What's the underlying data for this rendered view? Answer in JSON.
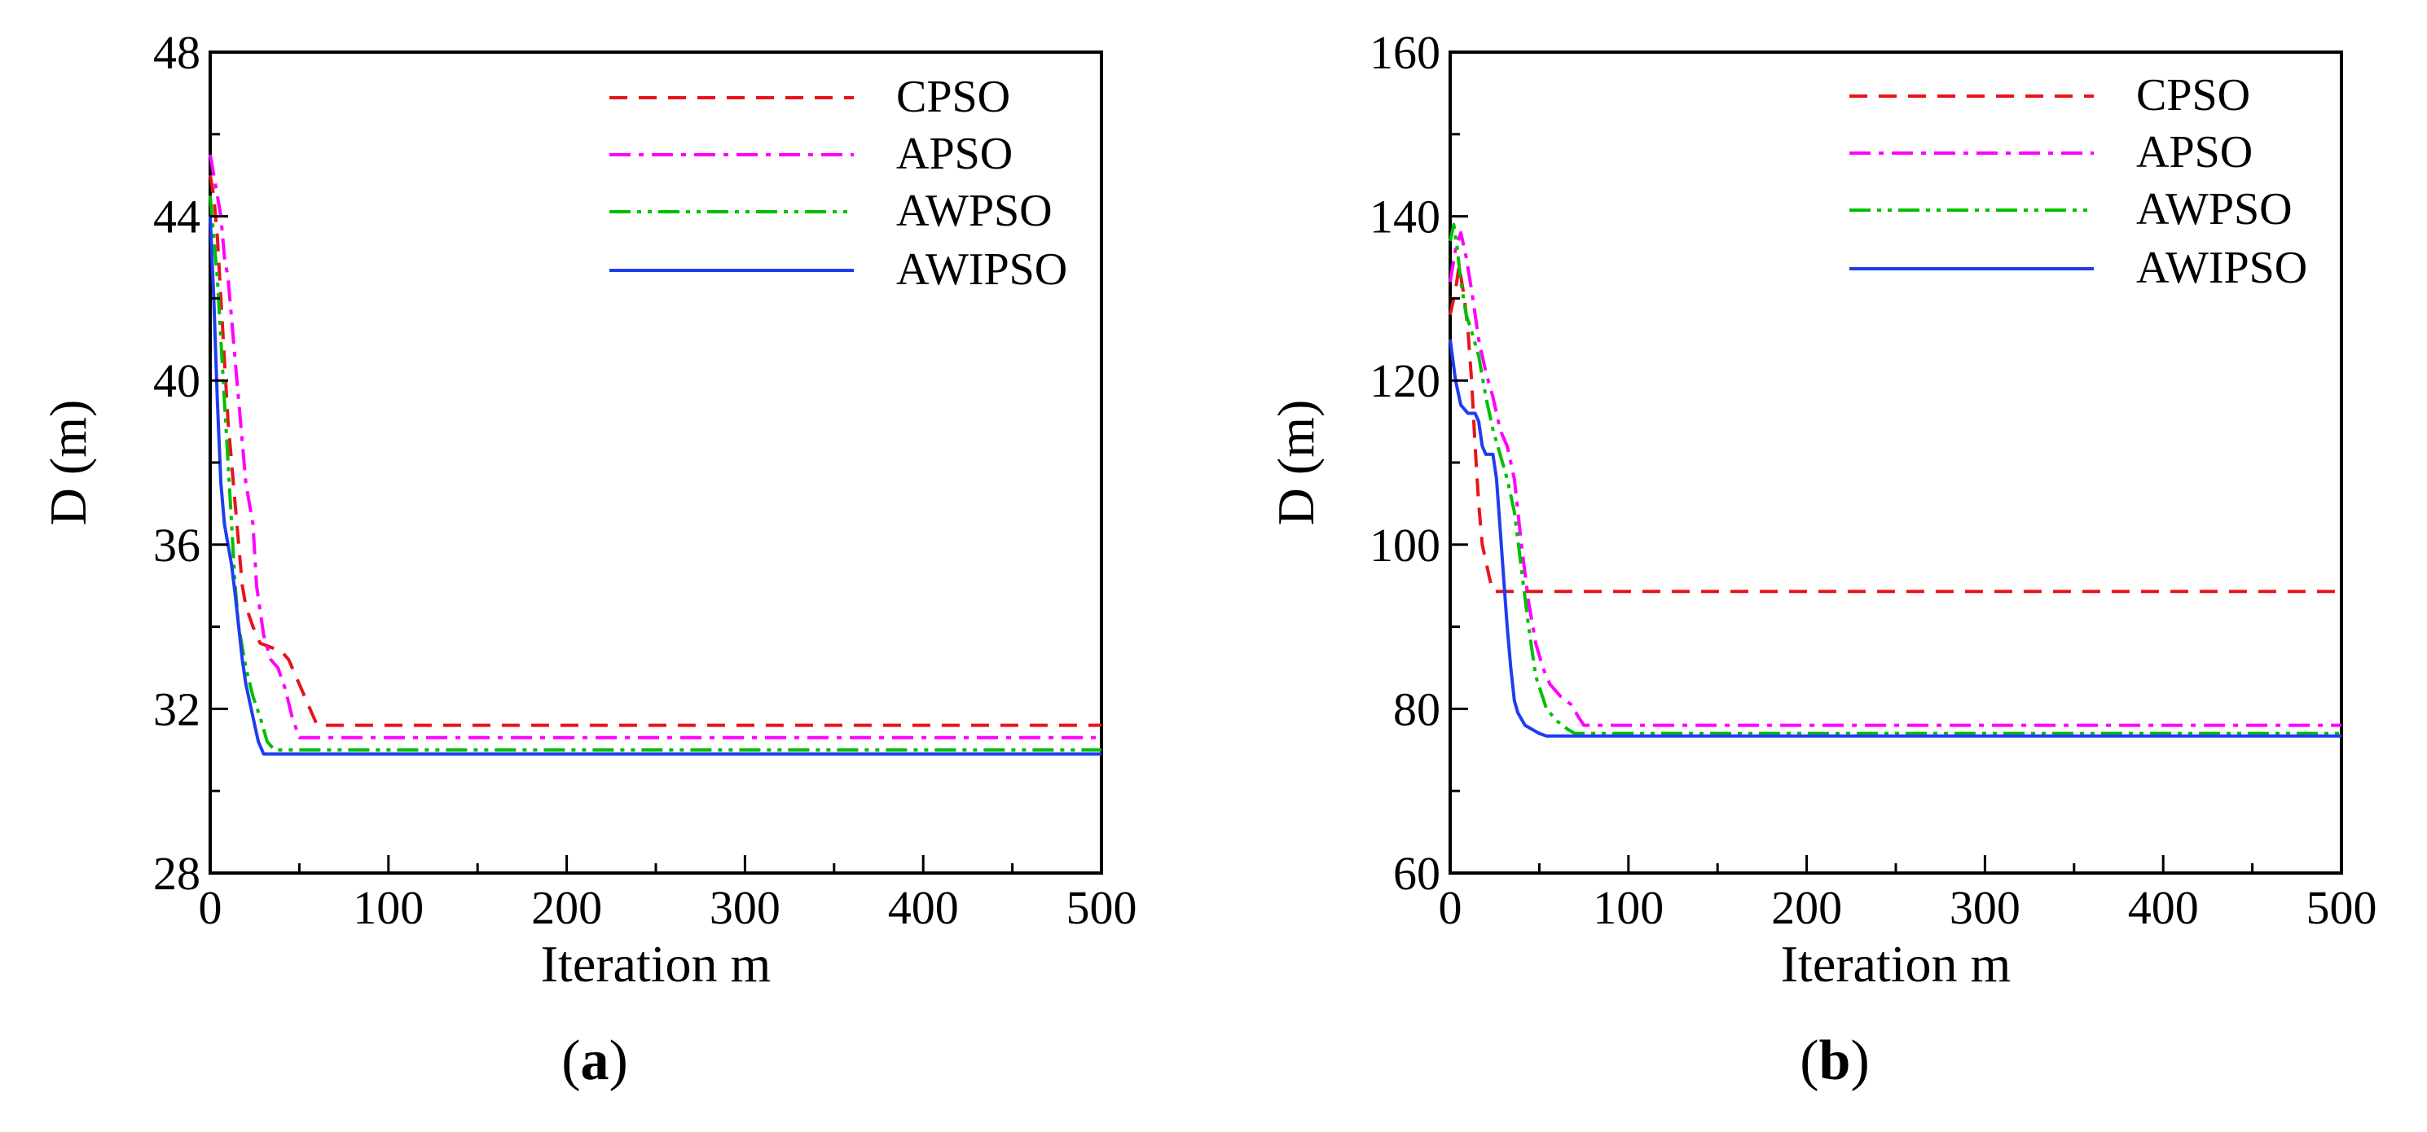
{
  "chart_data": [
    {
      "type": "line",
      "panel_label": "(a)",
      "panel_letter": "a",
      "xlabel": "Iteration m",
      "ylabel": "D (m)",
      "xlim": [
        0,
        500
      ],
      "ylim": [
        28,
        48
      ],
      "xticks": [
        0,
        100,
        200,
        300,
        400,
        500
      ],
      "yticks": [
        28,
        32,
        36,
        40,
        44,
        48
      ],
      "legend_position": "top-right",
      "grid": false,
      "series": [
        {
          "name": "CPSO",
          "color": "#e8141b",
          "dash": "dashed",
          "points": [
            [
              0,
              45
            ],
            [
              2,
              44.5
            ],
            [
              4,
              43.5
            ],
            [
              6,
              42
            ],
            [
              8,
              40.5
            ],
            [
              10,
              39
            ],
            [
              12,
              38
            ],
            [
              14,
              37
            ],
            [
              16,
              36
            ],
            [
              18,
              35
            ],
            [
              20,
              34.5
            ],
            [
              24,
              34
            ],
            [
              28,
              33.6
            ],
            [
              34,
              33.5
            ],
            [
              40,
              33.4
            ],
            [
              44,
              33.2
            ],
            [
              48,
              32.8
            ],
            [
              52,
              32.4
            ],
            [
              56,
              32.0
            ],
            [
              60,
              31.6
            ],
            [
              500,
              31.6
            ]
          ]
        },
        {
          "name": "APSO",
          "color": "#ff00ff",
          "dash": "dashdot",
          "points": [
            [
              0,
              45.5
            ],
            [
              2,
              45
            ],
            [
              4,
              44.5
            ],
            [
              6,
              44
            ],
            [
              8,
              43
            ],
            [
              10,
              42.5
            ],
            [
              12,
              41.5
            ],
            [
              14,
              40.5
            ],
            [
              16,
              39.5
            ],
            [
              18,
              38.5
            ],
            [
              20,
              37.5
            ],
            [
              22,
              37
            ],
            [
              24,
              36.5
            ],
            [
              26,
              35
            ],
            [
              30,
              33.8
            ],
            [
              34,
              33.2
            ],
            [
              38,
              33
            ],
            [
              42,
              32.5
            ],
            [
              46,
              31.8
            ],
            [
              50,
              31.3
            ],
            [
              500,
              31.3
            ]
          ]
        },
        {
          "name": "AWPSO",
          "color": "#00c000",
          "dash": "dashdotdot",
          "points": [
            [
              0,
              44.5
            ],
            [
              2,
              43.5
            ],
            [
              4,
              42.5
            ],
            [
              6,
              41
            ],
            [
              8,
              39.5
            ],
            [
              10,
              38
            ],
            [
              12,
              36.5
            ],
            [
              14,
              35
            ],
            [
              16,
              34
            ],
            [
              18,
              33.5
            ],
            [
              20,
              33
            ],
            [
              24,
              32.3
            ],
            [
              28,
              31.8
            ],
            [
              32,
              31.2
            ],
            [
              36,
              31.0
            ],
            [
              500,
              31.0
            ]
          ]
        },
        {
          "name": "AWIPSO",
          "color": "#1f3df0",
          "dash": "solid",
          "points": [
            [
              0,
              44
            ],
            [
              2,
              42
            ],
            [
              4,
              39.5
            ],
            [
              6,
              37.5
            ],
            [
              8,
              36.5
            ],
            [
              10,
              36
            ],
            [
              12,
              35.5
            ],
            [
              14,
              34.8
            ],
            [
              16,
              34
            ],
            [
              18,
              33.2
            ],
            [
              20,
              32.6
            ],
            [
              24,
              31.8
            ],
            [
              27,
              31.2
            ],
            [
              30,
              30.9
            ],
            [
              500,
              30.9
            ]
          ]
        }
      ]
    },
    {
      "type": "line",
      "panel_label": "(b)",
      "panel_letter": "b",
      "xlabel": "Iteration m",
      "ylabel": "D (m)",
      "xlim": [
        0,
        500
      ],
      "ylim": [
        60,
        160
      ],
      "xticks": [
        0,
        100,
        200,
        300,
        400,
        500
      ],
      "yticks": [
        60,
        80,
        100,
        120,
        140,
        160
      ],
      "legend_position": "top-right",
      "grid": false,
      "series": [
        {
          "name": "CPSO",
          "color": "#e8141b",
          "dash": "dashed",
          "points": [
            [
              0,
              128
            ],
            [
              3,
              131
            ],
            [
              5,
              134
            ],
            [
              8,
              130
            ],
            [
              10,
              126
            ],
            [
              12,
              120
            ],
            [
              14,
              112
            ],
            [
              16,
              105
            ],
            [
              18,
              100
            ],
            [
              20,
              98
            ],
            [
              22,
              96
            ],
            [
              24,
              94.3
            ],
            [
              500,
              94.3
            ]
          ]
        },
        {
          "name": "APSO",
          "color": "#ff00ff",
          "dash": "dashdot",
          "points": [
            [
              0,
              132
            ],
            [
              3,
              136
            ],
            [
              6,
              138
            ],
            [
              9,
              135
            ],
            [
              12,
              131
            ],
            [
              16,
              125
            ],
            [
              20,
              121
            ],
            [
              24,
              118
            ],
            [
              28,
              114
            ],
            [
              32,
              112
            ],
            [
              36,
              108
            ],
            [
              40,
              100
            ],
            [
              44,
              93
            ],
            [
              48,
              88
            ],
            [
              52,
              85
            ],
            [
              56,
              83
            ],
            [
              62,
              81.5
            ],
            [
              68,
              80.5
            ],
            [
              72,
              79
            ],
            [
              75,
              78
            ],
            [
              500,
              78
            ]
          ]
        },
        {
          "name": "AWPSO",
          "color": "#00c000",
          "dash": "dashdotdot",
          "points": [
            [
              0,
              137
            ],
            [
              2,
              139
            ],
            [
              4,
              136
            ],
            [
              6,
              132
            ],
            [
              9,
              128
            ],
            [
              12,
              126
            ],
            [
              16,
              123
            ],
            [
              20,
              118
            ],
            [
              24,
              114
            ],
            [
              28,
              111
            ],
            [
              32,
              108
            ],
            [
              36,
              104
            ],
            [
              40,
              97
            ],
            [
              44,
              90
            ],
            [
              48,
              84
            ],
            [
              54,
              80
            ],
            [
              60,
              78.5
            ],
            [
              66,
              77.5
            ],
            [
              70,
              77
            ],
            [
              500,
              77
            ]
          ]
        },
        {
          "name": "AWIPSO",
          "color": "#1f3df0",
          "dash": "solid",
          "points": [
            [
              0,
              125
            ],
            [
              3,
              120
            ],
            [
              6,
              117
            ],
            [
              10,
              116
            ],
            [
              14,
              116
            ],
            [
              16,
              115
            ],
            [
              18,
              112
            ],
            [
              20,
              111
            ],
            [
              24,
              111
            ],
            [
              26,
              108
            ],
            [
              28,
              102
            ],
            [
              30,
              96
            ],
            [
              32,
              90
            ],
            [
              34,
              85
            ],
            [
              36,
              81
            ],
            [
              38,
              79.5
            ],
            [
              42,
              78
            ],
            [
              46,
              77.5
            ],
            [
              50,
              77
            ],
            [
              54,
              76.7
            ],
            [
              500,
              76.7
            ]
          ]
        }
      ]
    }
  ]
}
